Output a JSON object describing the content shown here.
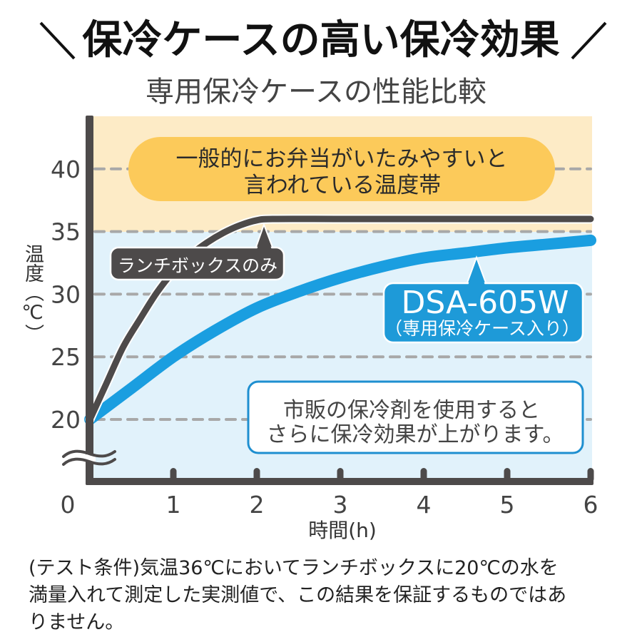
{
  "header": {
    "title": "保冷ケースの高い保冷効果"
  },
  "subtitle": "専用保冷ケースの性能比較",
  "chart": {
    "danger_zone_label": {
      "line1": "一般的にお弁当がいたみやすいと",
      "line2": "言われている温度帯"
    },
    "lunchbox_label": "ランチボックスのみ",
    "product_label": {
      "model": "DSA-605W",
      "desc": "（専用保冷ケース入り）"
    },
    "note": {
      "line1": "市販の保冷剤を使用すると",
      "line2": "さらに保冷効果が上がります。"
    },
    "y_axis_title": "温度（℃）",
    "x_axis_title": "時間(h)"
  },
  "footer": {
    "lines": [
      "(テスト条件)気温36℃においてランチボックスに20℃の水を",
      "満量入れて測定した実測値で、この結果を保証するものではあ",
      "りません。"
    ]
  },
  "colors": {
    "warning_band": "#fdebc6",
    "warning_bubble": "#fcca5a",
    "safe_band": "#e1f2fb",
    "lunchbox_line": "#4d4a4a",
    "product_line": "#1a9ee0",
    "product_label_bg": "#1e9ad8",
    "note_border": "#1e8fd0",
    "axis": "#4d4a4a",
    "grid": "#a8a8a8"
  },
  "chart_data": {
    "type": "line",
    "title": "専用保冷ケースの性能比較",
    "xlabel": "時間(h)",
    "ylabel": "温度(℃)",
    "x_ticks": [
      0,
      1,
      2,
      3,
      4,
      5,
      6
    ],
    "y_ticks": [
      20,
      25,
      30,
      35,
      40
    ],
    "xlim": [
      0,
      6
    ],
    "ylim": [
      20,
      44
    ],
    "y_axis_break": true,
    "grid": "horizontal-dashed",
    "legend": "none (inline labels)",
    "bands": [
      {
        "from": 35,
        "to": 44,
        "label": "一般的にお弁当がいたみやすいと言われている温度帯",
        "color": "#fdebc6"
      },
      {
        "from": 20,
        "to": 35,
        "label": "",
        "color": "#e1f2fb"
      }
    ],
    "series": [
      {
        "name": "ランチボックスのみ",
        "color": "#4d4a4a",
        "x": [
          0,
          0.2,
          0.4,
          0.6,
          0.8,
          1.0,
          1.2,
          1.4,
          1.6,
          1.8,
          2.0,
          2.2,
          3,
          4,
          5,
          6
        ],
        "values": [
          20,
          22.9,
          25.8,
          28.0,
          30.1,
          31.8,
          33.1,
          34.1,
          34.9,
          35.5,
          35.9,
          36.0,
          36.0,
          36.0,
          36.0,
          36.0
        ]
      },
      {
        "name": "DSA-605W（専用保冷ケース入り）",
        "color": "#1a9ee0",
        "x": [
          0,
          0.5,
          1,
          1.5,
          2,
          2.5,
          3,
          3.5,
          4,
          4.5,
          5,
          5.5,
          6
        ],
        "values": [
          20,
          22.5,
          25.0,
          27.1,
          28.9,
          30.2,
          31.3,
          32.2,
          32.9,
          33.3,
          33.7,
          34.0,
          34.3
        ]
      }
    ],
    "annotations": [
      "一般的にお弁当がいたみやすいと言われている温度帯",
      "ランチボックスのみ",
      "DSA-605W（専用保冷ケース入り）",
      "市販の保冷剤を使用するとさらに保冷効果が上がります。"
    ]
  }
}
